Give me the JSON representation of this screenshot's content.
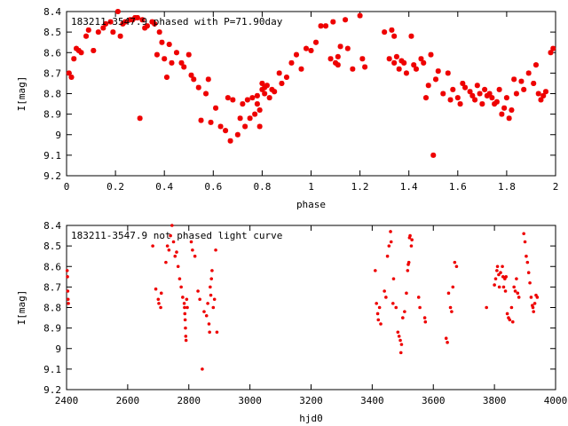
{
  "chart_data": [
    {
      "type": "scatter",
      "title": "183211-3547.9 phased with P=71.90day",
      "xlabel": "phase",
      "ylabel": "I[mag]",
      "xlim": [
        0,
        2
      ],
      "ylim": [
        8.4,
        9.2
      ],
      "y_inverted": true,
      "x_ticks": [
        "0",
        "0.2",
        "0.4",
        "0.6",
        "0.8",
        "1",
        "1.2",
        "1.4",
        "1.6",
        "1.8",
        "2"
      ],
      "y_ticks": [
        "8.4",
        "8.5",
        "8.6",
        "8.7",
        "8.8",
        "8.9",
        "9",
        "9.1",
        "9.2"
      ],
      "grid": false,
      "color": "#ee0000",
      "points": [
        [
          0.01,
          8.7
        ],
        [
          0.02,
          8.72
        ],
        [
          0.03,
          8.63
        ],
        [
          0.04,
          8.58
        ],
        [
          0.05,
          8.59
        ],
        [
          0.06,
          8.6
        ],
        [
          0.08,
          8.52
        ],
        [
          0.09,
          8.49
        ],
        [
          0.11,
          8.59
        ],
        [
          0.13,
          8.5
        ],
        [
          0.15,
          8.48
        ],
        [
          0.16,
          8.46
        ],
        [
          0.18,
          8.45
        ],
        [
          0.19,
          8.5
        ],
        [
          0.21,
          8.4
        ],
        [
          0.22,
          8.52
        ],
        [
          0.23,
          8.46
        ],
        [
          0.24,
          8.45
        ],
        [
          0.26,
          8.44
        ],
        [
          0.27,
          8.44
        ],
        [
          0.28,
          8.43
        ],
        [
          0.29,
          8.43
        ],
        [
          0.3,
          8.92
        ],
        [
          0.31,
          8.44
        ],
        [
          0.32,
          8.48
        ],
        [
          0.33,
          8.47
        ],
        [
          0.35,
          8.45
        ],
        [
          0.36,
          8.46
        ],
        [
          0.37,
          8.61
        ],
        [
          0.38,
          8.5
        ],
        [
          0.39,
          8.55
        ],
        [
          0.4,
          8.63
        ],
        [
          0.41,
          8.72
        ],
        [
          0.42,
          8.56
        ],
        [
          0.43,
          8.65
        ],
        [
          0.45,
          8.6
        ],
        [
          0.47,
          8.65
        ],
        [
          0.48,
          8.67
        ],
        [
          0.5,
          8.61
        ],
        [
          0.51,
          8.71
        ],
        [
          0.52,
          8.73
        ],
        [
          0.54,
          8.77
        ],
        [
          0.55,
          8.93
        ],
        [
          0.57,
          8.8
        ],
        [
          0.58,
          8.73
        ],
        [
          0.59,
          8.94
        ],
        [
          0.61,
          8.87
        ],
        [
          0.63,
          8.96
        ],
        [
          0.65,
          8.98
        ],
        [
          0.66,
          8.82
        ],
        [
          0.67,
          9.03
        ],
        [
          0.68,
          8.83
        ],
        [
          0.7,
          9.0
        ],
        [
          0.71,
          8.92
        ],
        [
          0.72,
          8.85
        ],
        [
          0.73,
          8.96
        ],
        [
          0.74,
          8.83
        ],
        [
          0.75,
          8.92
        ],
        [
          0.76,
          8.82
        ],
        [
          0.77,
          8.9
        ],
        [
          0.78,
          8.85
        ],
        [
          0.78,
          8.81
        ],
        [
          0.79,
          8.96
        ],
        [
          0.79,
          8.88
        ],
        [
          0.8,
          8.78
        ],
        [
          0.8,
          8.75
        ],
        [
          0.81,
          8.8
        ],
        [
          0.81,
          8.77
        ],
        [
          0.82,
          8.76
        ],
        [
          0.83,
          8.82
        ],
        [
          0.84,
          8.78
        ],
        [
          0.85,
          8.79
        ],
        [
          0.87,
          8.7
        ],
        [
          0.88,
          8.75
        ],
        [
          0.9,
          8.72
        ],
        [
          0.92,
          8.65
        ],
        [
          0.94,
          8.61
        ],
        [
          0.96,
          8.68
        ],
        [
          0.98,
          8.58
        ],
        [
          1.0,
          8.59
        ],
        [
          1.02,
          8.55
        ],
        [
          1.04,
          8.47
        ],
        [
          1.06,
          8.47
        ],
        [
          1.08,
          8.63
        ],
        [
          1.09,
          8.45
        ],
        [
          1.1,
          8.65
        ],
        [
          1.11,
          8.66
        ],
        [
          1.11,
          8.62
        ],
        [
          1.12,
          8.57
        ],
        [
          1.14,
          8.44
        ],
        [
          1.15,
          8.58
        ],
        [
          1.17,
          8.68
        ],
        [
          1.2,
          8.42
        ],
        [
          1.21,
          8.63
        ],
        [
          1.22,
          8.67
        ],
        [
          1.3,
          8.5
        ],
        [
          1.32,
          8.63
        ],
        [
          1.33,
          8.49
        ],
        [
          1.34,
          8.52
        ],
        [
          1.34,
          8.65
        ],
        [
          1.35,
          8.62
        ],
        [
          1.36,
          8.68
        ],
        [
          1.37,
          8.64
        ],
        [
          1.38,
          8.65
        ],
        [
          1.39,
          8.7
        ],
        [
          1.41,
          8.52
        ],
        [
          1.42,
          8.66
        ],
        [
          1.43,
          8.68
        ],
        [
          1.45,
          8.63
        ],
        [
          1.46,
          8.65
        ],
        [
          1.47,
          8.82
        ],
        [
          1.48,
          8.76
        ],
        [
          1.49,
          8.61
        ],
        [
          1.5,
          9.1
        ],
        [
          1.51,
          8.73
        ],
        [
          1.52,
          8.69
        ],
        [
          1.54,
          8.8
        ],
        [
          1.56,
          8.7
        ],
        [
          1.57,
          8.83
        ],
        [
          1.58,
          8.78
        ],
        [
          1.6,
          8.82
        ],
        [
          1.61,
          8.85
        ],
        [
          1.62,
          8.75
        ],
        [
          1.63,
          8.77
        ],
        [
          1.65,
          8.79
        ],
        [
          1.66,
          8.81
        ],
        [
          1.67,
          8.83
        ],
        [
          1.68,
          8.76
        ],
        [
          1.69,
          8.8
        ],
        [
          1.7,
          8.85
        ],
        [
          1.71,
          8.78
        ],
        [
          1.72,
          8.81
        ],
        [
          1.73,
          8.8
        ],
        [
          1.74,
          8.82
        ],
        [
          1.75,
          8.85
        ],
        [
          1.76,
          8.84
        ],
        [
          1.77,
          8.78
        ],
        [
          1.78,
          8.9
        ],
        [
          1.79,
          8.87
        ],
        [
          1.8,
          8.82
        ],
        [
          1.81,
          8.92
        ],
        [
          1.82,
          8.88
        ],
        [
          1.83,
          8.73
        ],
        [
          1.84,
          8.8
        ],
        [
          1.86,
          8.74
        ],
        [
          1.87,
          8.78
        ],
        [
          1.89,
          8.7
        ],
        [
          1.91,
          8.75
        ],
        [
          1.92,
          8.66
        ],
        [
          1.93,
          8.8
        ],
        [
          1.94,
          8.83
        ],
        [
          1.95,
          8.81
        ],
        [
          1.96,
          8.79
        ],
        [
          1.98,
          8.6
        ],
        [
          1.99,
          8.58
        ]
      ]
    },
    {
      "type": "scatter",
      "title": "183211-3547.9 not phased light curve",
      "xlabel": "hjd0",
      "ylabel": "I[mag]",
      "xlim": [
        2400,
        4000
      ],
      "ylim": [
        8.4,
        9.2
      ],
      "y_inverted": true,
      "x_ticks": [
        "2400",
        "2600",
        "2800",
        "3000",
        "3200",
        "3400",
        "3600",
        "3800",
        "4000"
      ],
      "y_ticks": [
        "8.4",
        "8.5",
        "8.6",
        "8.7",
        "8.8",
        "8.9",
        "9",
        "9.1",
        "9.2"
      ],
      "grid": false,
      "color": "#ee0000",
      "points": [
        [
          2402,
          8.62
        ],
        [
          2403,
          8.65
        ],
        [
          2404,
          8.72
        ],
        [
          2405,
          8.76
        ],
        [
          2406,
          8.78
        ],
        [
          2682,
          8.5
        ],
        [
          2692,
          8.71
        ],
        [
          2700,
          8.76
        ],
        [
          2702,
          8.78
        ],
        [
          2708,
          8.8
        ],
        [
          2710,
          8.73
        ],
        [
          2725,
          8.58
        ],
        [
          2730,
          8.5
        ],
        [
          2735,
          8.52
        ],
        [
          2740,
          8.45
        ],
        [
          2745,
          8.4
        ],
        [
          2750,
          8.48
        ],
        [
          2755,
          8.55
        ],
        [
          2760,
          8.53
        ],
        [
          2765,
          8.6
        ],
        [
          2770,
          8.66
        ],
        [
          2775,
          8.7
        ],
        [
          2780,
          8.75
        ],
        [
          2785,
          8.78
        ],
        [
          2786,
          8.8
        ],
        [
          2787,
          8.83
        ],
        [
          2788,
          8.86
        ],
        [
          2789,
          8.9
        ],
        [
          2790,
          8.94
        ],
        [
          2791,
          8.96
        ],
        [
          2793,
          8.76
        ],
        [
          2795,
          8.8
        ],
        [
          2808,
          8.48
        ],
        [
          2812,
          8.52
        ],
        [
          2820,
          8.55
        ],
        [
          2830,
          8.72
        ],
        [
          2836,
          8.76
        ],
        [
          2844,
          9.1
        ],
        [
          2850,
          8.82
        ],
        [
          2858,
          8.84
        ],
        [
          2862,
          8.78
        ],
        [
          2866,
          8.88
        ],
        [
          2868,
          8.92
        ],
        [
          2870,
          8.7
        ],
        [
          2872,
          8.74
        ],
        [
          2874,
          8.66
        ],
        [
          2876,
          8.62
        ],
        [
          2880,
          8.8
        ],
        [
          2884,
          8.76
        ],
        [
          2888,
          8.52
        ],
        [
          2892,
          8.92
        ],
        [
          3410,
          8.62
        ],
        [
          3414,
          8.78
        ],
        [
          3418,
          8.83
        ],
        [
          3420,
          8.86
        ],
        [
          3424,
          8.8
        ],
        [
          3428,
          8.88
        ],
        [
          3440,
          8.72
        ],
        [
          3445,
          8.75
        ],
        [
          3450,
          8.55
        ],
        [
          3455,
          8.5
        ],
        [
          3460,
          8.43
        ],
        [
          3462,
          8.48
        ],
        [
          3468,
          8.78
        ],
        [
          3470,
          8.66
        ],
        [
          3478,
          8.8
        ],
        [
          3484,
          8.92
        ],
        [
          3488,
          8.94
        ],
        [
          3492,
          8.96
        ],
        [
          3494,
          9.02
        ],
        [
          3496,
          8.98
        ],
        [
          3500,
          8.85
        ],
        [
          3506,
          8.82
        ],
        [
          3512,
          8.73
        ],
        [
          3516,
          8.62
        ],
        [
          3518,
          8.59
        ],
        [
          3520,
          8.58
        ],
        [
          3522,
          8.46
        ],
        [
          3524,
          8.45
        ],
        [
          3528,
          8.5
        ],
        [
          3530,
          8.47
        ],
        [
          3552,
          8.75
        ],
        [
          3556,
          8.8
        ],
        [
          3572,
          8.85
        ],
        [
          3574,
          8.87
        ],
        [
          3642,
          8.95
        ],
        [
          3646,
          8.97
        ],
        [
          3650,
          8.73
        ],
        [
          3656,
          8.8
        ],
        [
          3660,
          8.82
        ],
        [
          3664,
          8.7
        ],
        [
          3670,
          8.58
        ],
        [
          3676,
          8.6
        ],
        [
          3774,
          8.8
        ],
        [
          3800,
          8.69
        ],
        [
          3804,
          8.66
        ],
        [
          3808,
          8.62
        ],
        [
          3810,
          8.6
        ],
        [
          3814,
          8.64
        ],
        [
          3816,
          8.7
        ],
        [
          3820,
          8.63
        ],
        [
          3826,
          8.6
        ],
        [
          3828,
          8.65
        ],
        [
          3830,
          8.7
        ],
        [
          3834,
          8.66
        ],
        [
          3836,
          8.72
        ],
        [
          3838,
          8.65
        ],
        [
          3842,
          8.83
        ],
        [
          3846,
          8.85
        ],
        [
          3850,
          8.86
        ],
        [
          3856,
          8.8
        ],
        [
          3860,
          8.87
        ],
        [
          3864,
          8.7
        ],
        [
          3868,
          8.72
        ],
        [
          3872,
          8.66
        ],
        [
          3876,
          8.73
        ],
        [
          3880,
          8.75
        ],
        [
          3896,
          8.44
        ],
        [
          3900,
          8.48
        ],
        [
          3904,
          8.55
        ],
        [
          3908,
          8.58
        ],
        [
          3912,
          8.63
        ],
        [
          3916,
          8.68
        ],
        [
          3920,
          8.75
        ],
        [
          3924,
          8.79
        ],
        [
          3926,
          8.8
        ],
        [
          3928,
          8.82
        ],
        [
          3932,
          8.78
        ],
        [
          3936,
          8.74
        ],
        [
          3940,
          8.75
        ]
      ]
    }
  ]
}
